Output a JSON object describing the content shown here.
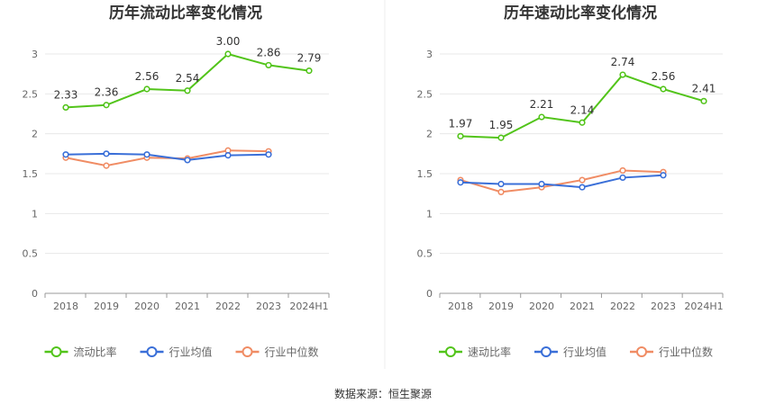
{
  "source": "数据来源：恒生聚源",
  "colors": {
    "primary": "#52c41a",
    "mean": "#3a6fd8",
    "median": "#f08c64",
    "grid": "#e8e8e8",
    "axis": "#999999"
  },
  "chart_data": [
    {
      "type": "line",
      "title": "历年流动比率变化情况",
      "categories": [
        "2018",
        "2019",
        "2020",
        "2021",
        "2022",
        "2023",
        "2024H1"
      ],
      "ylim": [
        0,
        3
      ],
      "yticks": [
        "0",
        "0.5",
        "1",
        "1.5",
        "2",
        "2.5",
        "3"
      ],
      "grid": true,
      "legend_position": "bottom",
      "series": [
        {
          "name": "流动比率",
          "color": "#52c41a",
          "values": [
            2.33,
            2.36,
            2.56,
            2.54,
            3.0,
            2.86,
            2.79
          ],
          "labels": [
            "2.33",
            "2.36",
            "2.56",
            "2.54",
            "3.00",
            "2.86",
            "2.79"
          ]
        },
        {
          "name": "行业均值",
          "color": "#3a6fd8",
          "values": [
            1.74,
            1.75,
            1.74,
            1.67,
            1.73,
            1.74,
            null
          ]
        },
        {
          "name": "行业中位数",
          "color": "#f08c64",
          "values": [
            1.7,
            1.6,
            1.7,
            1.69,
            1.79,
            1.78,
            null
          ]
        }
      ]
    },
    {
      "type": "line",
      "title": "历年速动比率变化情况",
      "categories": [
        "2018",
        "2019",
        "2020",
        "2021",
        "2022",
        "2023",
        "2024H1"
      ],
      "ylim": [
        0,
        3
      ],
      "yticks": [
        "0",
        "0.5",
        "1",
        "1.5",
        "2",
        "2.5",
        "3"
      ],
      "grid": true,
      "legend_position": "bottom",
      "series": [
        {
          "name": "速动比率",
          "color": "#52c41a",
          "values": [
            1.97,
            1.95,
            2.21,
            2.14,
            2.74,
            2.56,
            2.41
          ],
          "labels": [
            "1.97",
            "1.95",
            "2.21",
            "2.14",
            "2.74",
            "2.56",
            "2.41"
          ]
        },
        {
          "name": "行业均值",
          "color": "#3a6fd8",
          "values": [
            1.39,
            1.37,
            1.37,
            1.33,
            1.45,
            1.48,
            null
          ]
        },
        {
          "name": "行业中位数",
          "color": "#f08c64",
          "values": [
            1.42,
            1.27,
            1.33,
            1.42,
            1.54,
            1.52,
            null
          ]
        }
      ]
    }
  ]
}
